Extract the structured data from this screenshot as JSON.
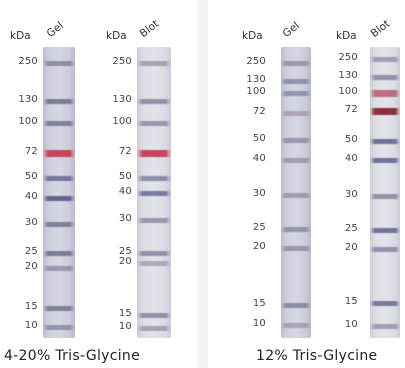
{
  "colors": {
    "lane": "#c9c9d6",
    "band": "#5e5f82",
    "red_band": "#c8354d"
  },
  "panels": [
    {
      "caption": "4-20% Tris-Glycine",
      "lanes": [
        {
          "unit": "kDa",
          "name": "Gel",
          "ladder": [
            "250",
            "130",
            "100",
            "72",
            "50",
            "40",
            "30",
            "25",
            "20",
            "15",
            "10"
          ],
          "bands": [
            {
              "kDa": "250",
              "color": "#6a6b8c",
              "opacity": 0.65
            },
            {
              "kDa": "130",
              "color": "#5e5f82",
              "opacity": 0.75
            },
            {
              "kDa": "100",
              "color": "#5e5f82",
              "opacity": 0.7
            },
            {
              "kDa": "72",
              "color": "#c8354d",
              "opacity": 0.9
            },
            {
              "kDa": "50",
              "color": "#55588a",
              "opacity": 0.75
            },
            {
              "kDa": "40",
              "color": "#4f5282",
              "opacity": 0.85
            },
            {
              "kDa": "30",
              "color": "#5e5f82",
              "opacity": 0.7
            },
            {
              "kDa": "25",
              "color": "#5e5f82",
              "opacity": 0.75
            },
            {
              "kDa": "20",
              "color": "#6a6b8c",
              "opacity": 0.55
            },
            {
              "kDa": "15",
              "color": "#5e5f82",
              "opacity": 0.7
            },
            {
              "kDa": "10",
              "color": "#6a6b8c",
              "opacity": 0.6
            }
          ]
        },
        {
          "unit": "kDa",
          "name": "Blot",
          "ladder": [
            "250",
            "130",
            "100",
            "72",
            "50",
            "40",
            "30",
            "25",
            "20",
            "15",
            "10"
          ],
          "bands": [
            {
              "kDa": "250",
              "color": "#6a6b8c",
              "opacity": 0.5
            },
            {
              "kDa": "130",
              "color": "#5e5f82",
              "opacity": 0.6
            },
            {
              "kDa": "100",
              "color": "#5e5f82",
              "opacity": 0.55
            },
            {
              "kDa": "72",
              "color": "#c8354d",
              "opacity": 0.9
            },
            {
              "kDa": "50",
              "color": "#55588a",
              "opacity": 0.6
            },
            {
              "kDa": "40",
              "color": "#4f5282",
              "opacity": 0.7
            },
            {
              "kDa": "30",
              "color": "#5e5f82",
              "opacity": 0.55
            },
            {
              "kDa": "25",
              "color": "#5e5f82",
              "opacity": 0.6
            },
            {
              "kDa": "20",
              "color": "#6a6b8c",
              "opacity": 0.45
            },
            {
              "kDa": "15",
              "color": "#5e5f82",
              "opacity": 0.6
            },
            {
              "kDa": "10",
              "color": "#6a6b8c",
              "opacity": 0.5
            }
          ]
        }
      ]
    },
    {
      "caption": "12% Tris-Glycine",
      "lanes": [
        {
          "unit": "kDa",
          "name": "Gel",
          "ladder": [
            "250",
            "130",
            "100",
            "72",
            "50",
            "40",
            "30",
            "25",
            "20",
            "15",
            "10"
          ],
          "bands": [
            {
              "kDa": "250",
              "color": "#6a6b8c",
              "opacity": 0.55
            },
            {
              "kDa": "130",
              "color": "#5e5f82",
              "opacity": 0.55
            },
            {
              "kDa": "100",
              "color": "#5e5f82",
              "opacity": 0.55
            },
            {
              "kDa": "72",
              "color": "#8a6a86",
              "opacity": 0.45
            },
            {
              "kDa": "50",
              "color": "#5e5f82",
              "opacity": 0.5
            },
            {
              "kDa": "40",
              "color": "#5e5f82",
              "opacity": 0.45
            },
            {
              "kDa": "30",
              "color": "#5e5f82",
              "opacity": 0.45
            },
            {
              "kDa": "25",
              "color": "#5e5f82",
              "opacity": 0.55
            },
            {
              "kDa": "20",
              "color": "#5e5f82",
              "opacity": 0.5
            },
            {
              "kDa": "15",
              "color": "#5e5f82",
              "opacity": 0.6
            },
            {
              "kDa": "10",
              "color": "#6a6b8c",
              "opacity": 0.45
            }
          ]
        },
        {
          "unit": "kDa",
          "name": "Blot",
          "ladder": [
            "250",
            "130",
            "100",
            "72",
            "50",
            "40",
            "30",
            "25",
            "20",
            "15",
            "10"
          ],
          "bands": [
            {
              "kDa": "250",
              "color": "#6a6b8c",
              "opacity": 0.55
            },
            {
              "kDa": "130",
              "color": "#5e5f82",
              "opacity": 0.6
            },
            {
              "kDa": "100",
              "color": "#b0485e",
              "opacity": 0.75
            },
            {
              "kDa": "72",
              "color": "#8a2638",
              "opacity": 0.95
            },
            {
              "kDa": "50",
              "color": "#4c4f80",
              "opacity": 0.75
            },
            {
              "kDa": "40",
              "color": "#4c4f80",
              "opacity": 0.75
            },
            {
              "kDa": "30",
              "color": "#5e5f82",
              "opacity": 0.6
            },
            {
              "kDa": "25",
              "color": "#4c4f80",
              "opacity": 0.75
            },
            {
              "kDa": "20",
              "color": "#5e5f82",
              "opacity": 0.6
            },
            {
              "kDa": "15",
              "color": "#4c4f80",
              "opacity": 0.7
            },
            {
              "kDa": "10",
              "color": "#6a6b8c",
              "opacity": 0.55
            }
          ]
        }
      ]
    }
  ]
}
